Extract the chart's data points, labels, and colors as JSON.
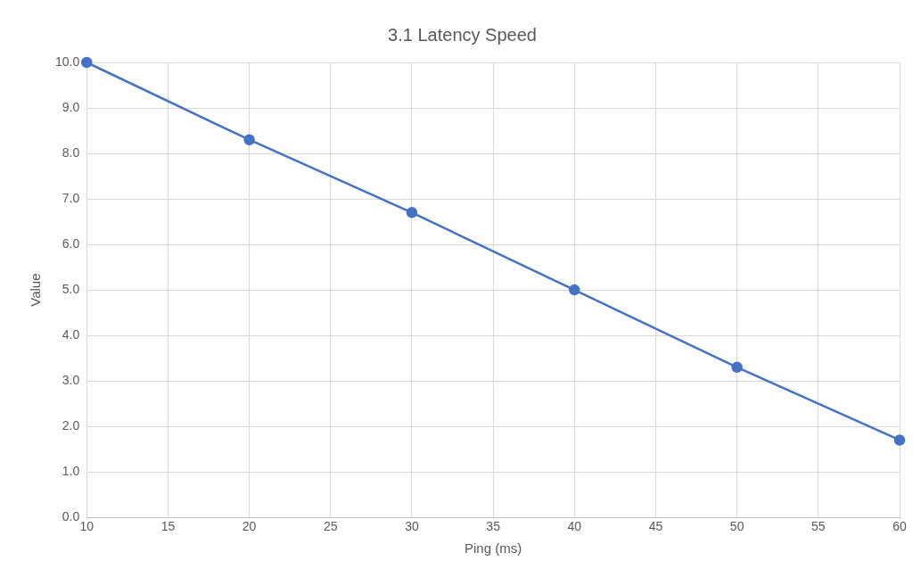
{
  "chart_data": {
    "type": "line",
    "title": "3.1 Latency Speed",
    "xlabel": "Ping (ms)",
    "ylabel": "Value",
    "x": [
      10,
      20,
      30,
      40,
      50,
      60
    ],
    "series": [
      {
        "color": "#4472c4",
        "values": [
          10,
          8.3,
          6.7,
          5.0,
          3.3,
          1.7
        ]
      }
    ],
    "xlim": [
      10,
      60
    ],
    "xticks": [
      10,
      15,
      20,
      25,
      30,
      35,
      40,
      45,
      50,
      55,
      60
    ],
    "ylim": [
      0,
      10
    ],
    "yticks": [
      {
        "value": 0,
        "label": "0.0"
      },
      {
        "value": 1,
        "label": "1.0"
      },
      {
        "value": 2,
        "label": "2.0"
      },
      {
        "value": 3,
        "label": "3.0"
      },
      {
        "value": 4,
        "label": "4.0"
      },
      {
        "value": 5,
        "label": "5.0"
      },
      {
        "value": 6,
        "label": "6.0"
      },
      {
        "value": 7,
        "label": "7.0"
      },
      {
        "value": 8,
        "label": "8.0"
      },
      {
        "value": 9,
        "label": "9.0"
      },
      {
        "value": 10,
        "label": "10.0"
      }
    ],
    "grid": true,
    "legend": false,
    "marker": "circle",
    "line_style": "solid"
  }
}
